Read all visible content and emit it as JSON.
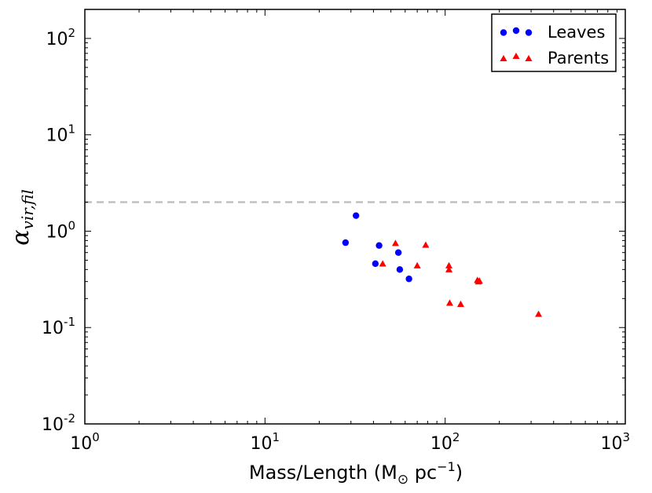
{
  "chart_data": {
    "type": "scatter",
    "xscale": "log",
    "yscale": "log",
    "xlim": [
      1,
      1000
    ],
    "ylim": [
      0.01,
      200
    ],
    "xlabel": "Mass/Length (M",
    "xlabel_sub": "⊙",
    "xlabel_unit": " pc",
    "xlabel_exp": "−1",
    "xlabel_close": ")",
    "ylabel_main": "α",
    "ylabel_sub": "vir,fil",
    "x_ticks": [
      {
        "value": 1,
        "base": "10",
        "exp": "0"
      },
      {
        "value": 10,
        "base": "10",
        "exp": "1"
      },
      {
        "value": 100,
        "base": "10",
        "exp": "2"
      },
      {
        "value": 1000,
        "base": "10",
        "exp": "3"
      }
    ],
    "y_ticks": [
      {
        "value": 0.01,
        "base": "10",
        "exp": "-2"
      },
      {
        "value": 0.1,
        "base": "10",
        "exp": "-1"
      },
      {
        "value": 1,
        "base": "10",
        "exp": "0"
      },
      {
        "value": 10,
        "base": "10",
        "exp": "1"
      },
      {
        "value": 100,
        "base": "10",
        "exp": "2"
      }
    ],
    "reference_line": {
      "y": 2,
      "style": "dashed",
      "color": "#c0c0c0"
    },
    "series": [
      {
        "name": "Leaves",
        "marker": "circle",
        "color": "#0000ff",
        "points": [
          {
            "x": 28,
            "y": 0.76
          },
          {
            "x": 32,
            "y": 1.45
          },
          {
            "x": 41,
            "y": 0.46
          },
          {
            "x": 43,
            "y": 0.71
          },
          {
            "x": 55,
            "y": 0.6
          },
          {
            "x": 56,
            "y": 0.4
          },
          {
            "x": 63,
            "y": 0.32
          }
        ]
      },
      {
        "name": "Parents",
        "marker": "triangle",
        "color": "#ff0000",
        "points": [
          {
            "x": 45,
            "y": 0.46
          },
          {
            "x": 53,
            "y": 0.75
          },
          {
            "x": 70,
            "y": 0.44
          },
          {
            "x": 78,
            "y": 0.72
          },
          {
            "x": 105,
            "y": 0.44
          },
          {
            "x": 105,
            "y": 0.4
          },
          {
            "x": 106,
            "y": 0.18
          },
          {
            "x": 122,
            "y": 0.175
          },
          {
            "x": 151,
            "y": 0.31
          },
          {
            "x": 153,
            "y": 0.3
          },
          {
            "x": 155,
            "y": 0.305
          },
          {
            "x": 330,
            "y": 0.138
          }
        ]
      }
    ],
    "legend": {
      "position": "top-right"
    }
  }
}
